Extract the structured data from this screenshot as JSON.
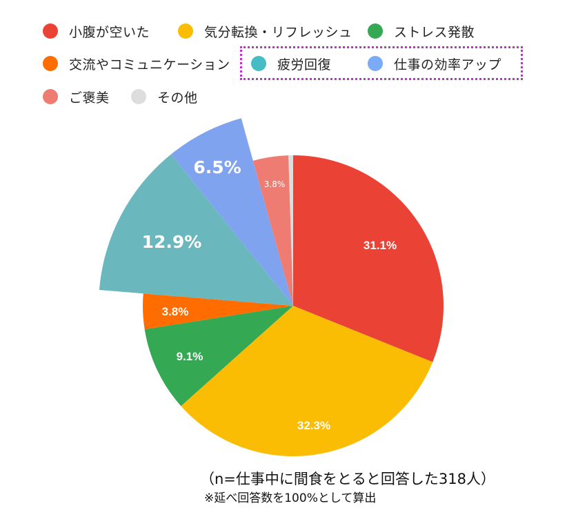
{
  "chart_data": {
    "type": "pie",
    "title": "",
    "exploded_categories": [
      "疲労回復",
      "仕事の効率アップ"
    ],
    "legend_position": "top",
    "slices": [
      {
        "label": "小腹が空いた",
        "value": 31.1,
        "display": "31.1%",
        "color": "#ea4335"
      },
      {
        "label": "気分転換・リフレッシュ",
        "value": 32.3,
        "display": "32.3%",
        "color": "#fbbc04"
      },
      {
        "label": "ストレス発散",
        "value": 9.1,
        "display": "9.1%",
        "color": "#34a853"
      },
      {
        "label": "交流やコミュニケーション",
        "value": 3.8,
        "display": "3.8%",
        "color": "#ff6d01"
      },
      {
        "label": "疲労回復",
        "value": 12.9,
        "display": "12.9%",
        "color": "#6ab7be"
      },
      {
        "label": "仕事の効率アップ",
        "value": 6.5,
        "display": "6.5%",
        "color": "#7fa3ee"
      },
      {
        "label": "ご褒美",
        "value": 3.8,
        "display": "3.8%",
        "color": "#ee7c73"
      },
      {
        "label": "その他",
        "value": 0.5,
        "display": "",
        "color": "#dddddd"
      }
    ],
    "annotations": [
      "（n=仕事中に間食をとると回答した318人）",
      "※延べ回答数を100%として算出"
    ]
  },
  "legend": {
    "items": [
      {
        "label": "小腹が空いた",
        "color": "#ea4335"
      },
      {
        "label": "気分転換・リフレッシュ",
        "color": "#fbbc04"
      },
      {
        "label": "ストレス発散",
        "color": "#34a853"
      },
      {
        "label": "交流やコミュニケーション",
        "color": "#ff6d01"
      },
      {
        "label": "疲労回復",
        "color": "#46bdc6"
      },
      {
        "label": "仕事の効率アップ",
        "color": "#7baaf7"
      },
      {
        "label": "ご褒美",
        "color": "#ee7c73"
      },
      {
        "label": "その他",
        "color": "#dddddd"
      }
    ],
    "highlight_color": "#c22fcf"
  },
  "labels": {
    "slice_0": "31.1%",
    "slice_1": "32.3%",
    "slice_2": "9.1%",
    "slice_3": "3.8%",
    "slice_4": "12.9%",
    "slice_5": "6.5%",
    "slice_6": "3.8%"
  },
  "notes": {
    "sample": "（n=仕事中に間食をとると回答した318人）",
    "method": "※延べ回答数を100%として算出"
  }
}
